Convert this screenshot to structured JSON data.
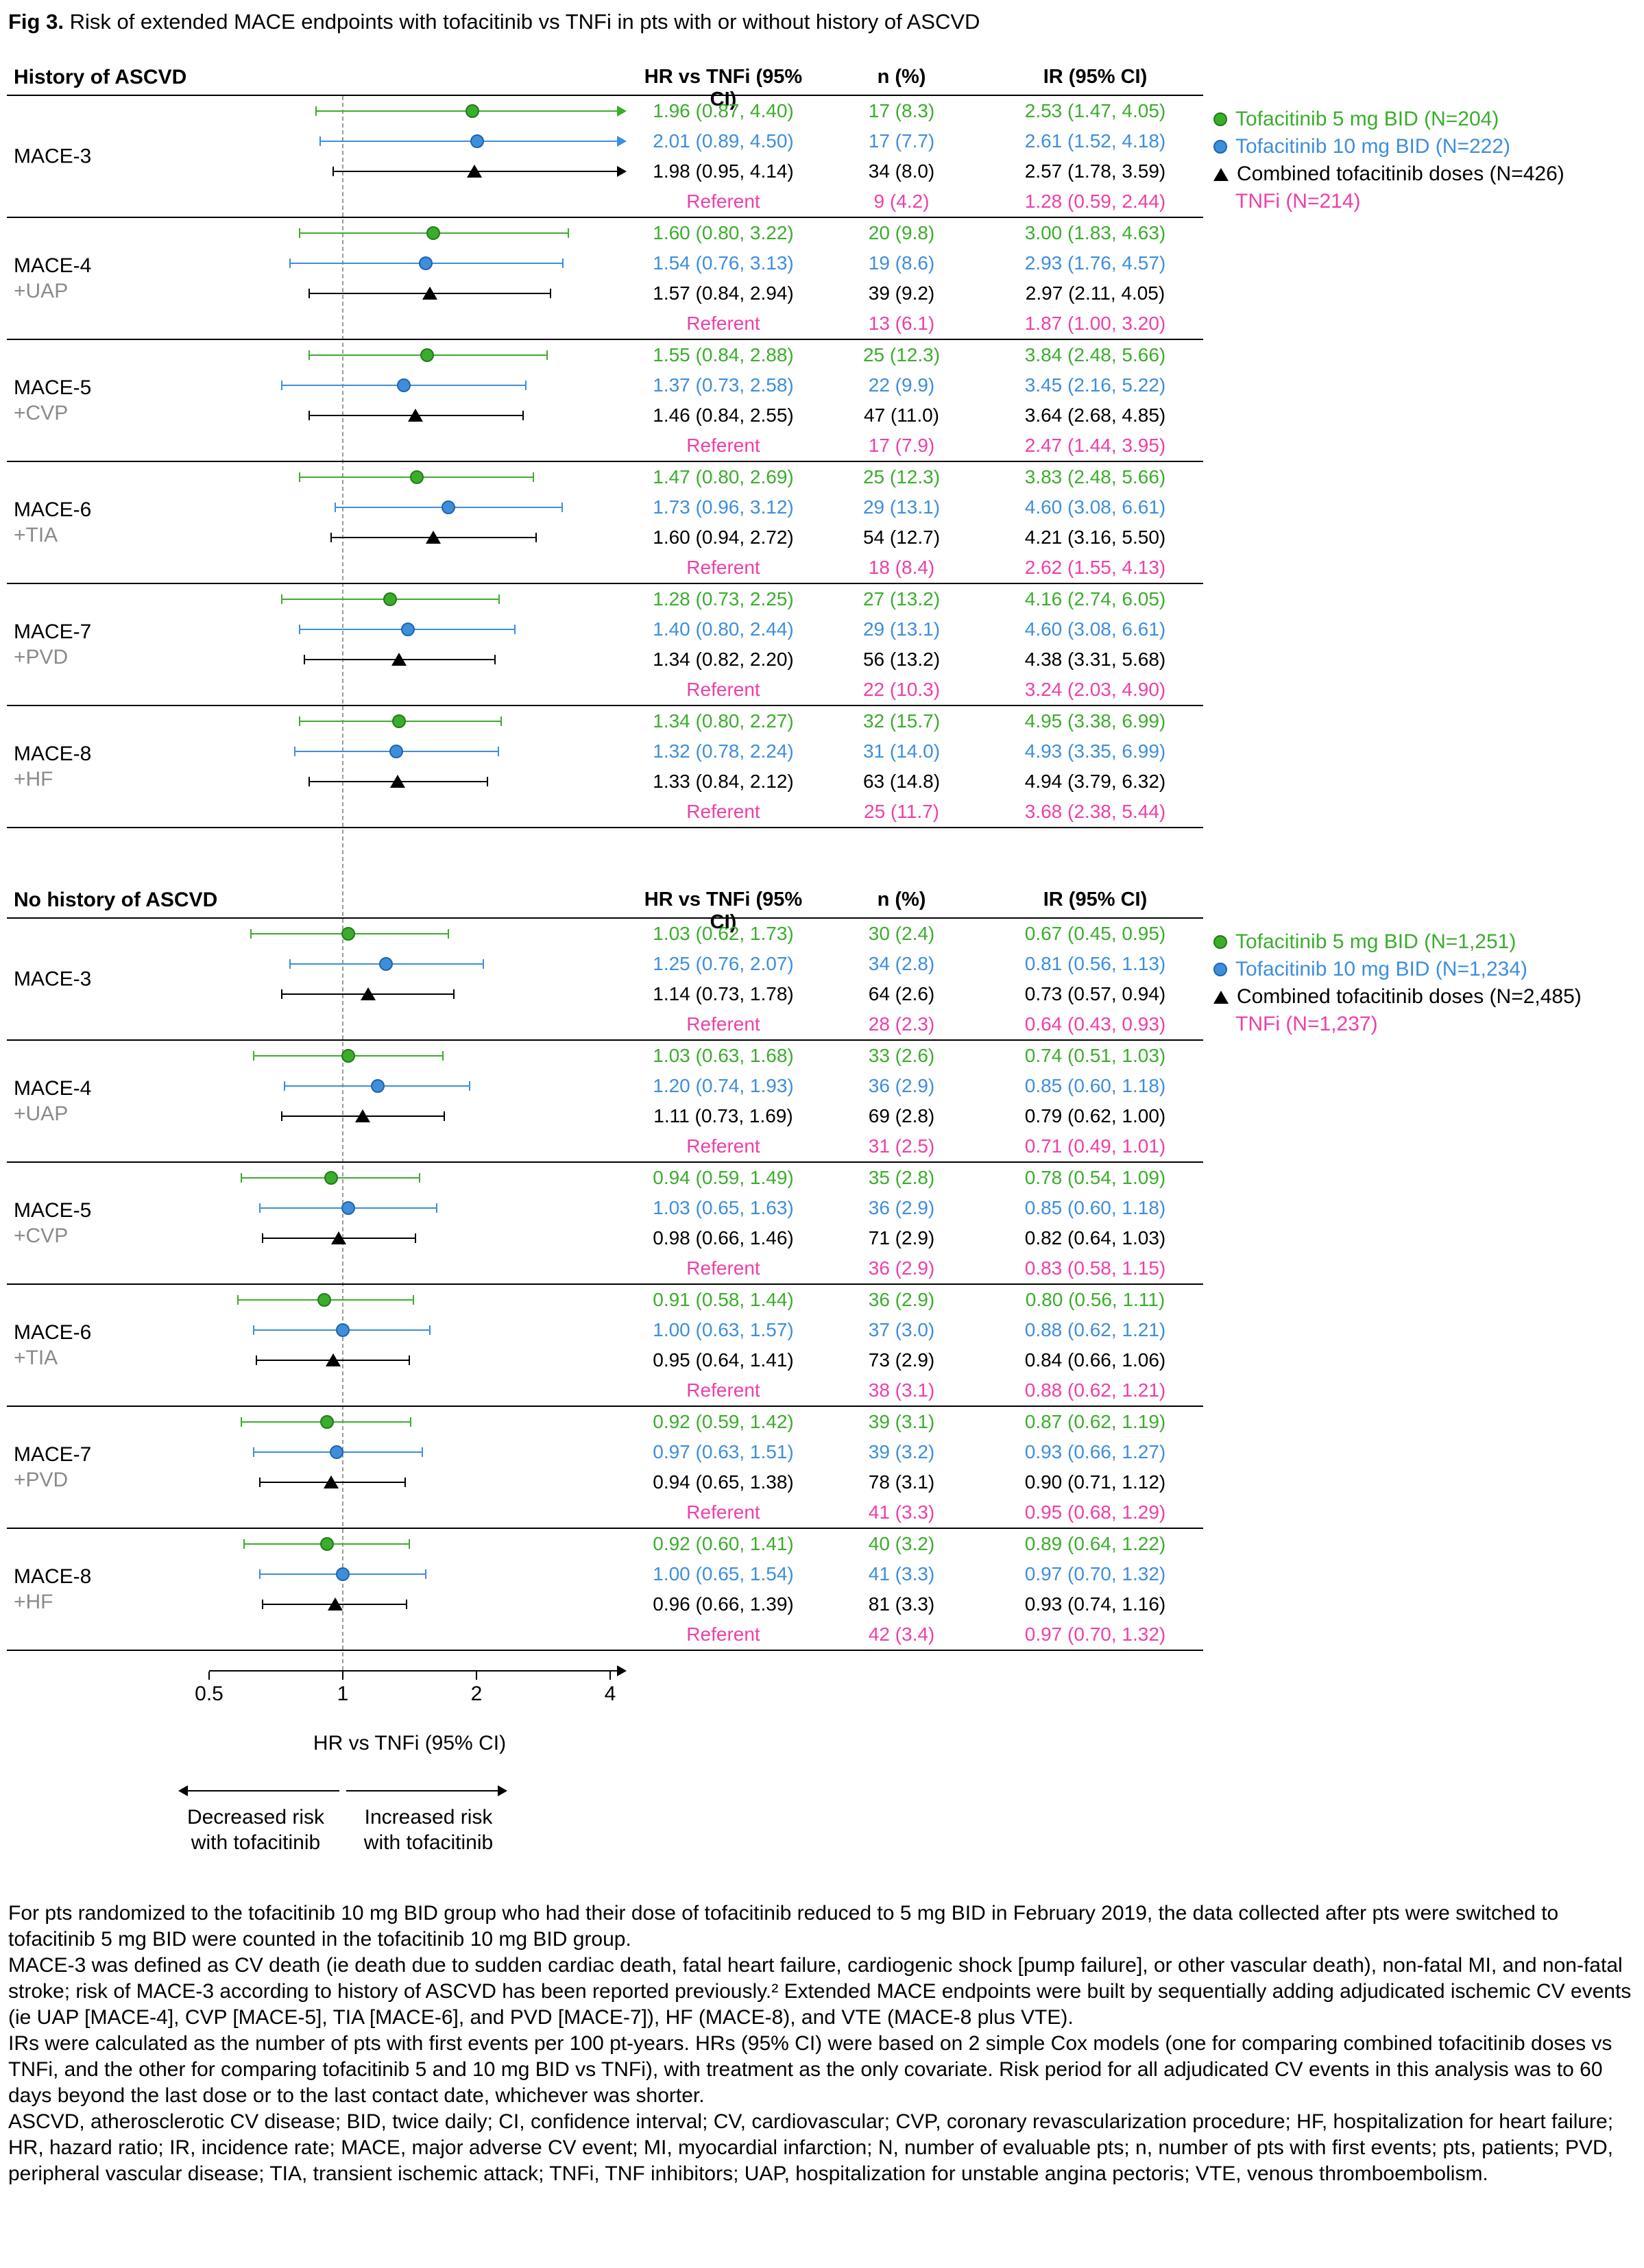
{
  "figure": {
    "label": "Fig 3.",
    "title": "Risk of extended MACE endpoints with tofacitinib vs TNFi in pts with or without history of ASCVD"
  },
  "columns": {
    "hr": "HR vs TNFi (95% CI)",
    "n": "n (%)",
    "ir": "IR (95% CI)"
  },
  "series_styles": {
    "tofa5": {
      "color": "#3BAD2C",
      "border": "#237A18",
      "marker": "circle"
    },
    "tofa10": {
      "color": "#3E8EDC",
      "border": "#1F64AD",
      "marker": "circle"
    },
    "combined": {
      "color": "#000000",
      "border": "#000000",
      "marker": "triangle"
    },
    "tnfi": {
      "color": "#EE3FA8",
      "border": "#EE3FA8",
      "marker": "none"
    }
  },
  "axis": {
    "scale": "log2",
    "min": 0.5,
    "max": 4,
    "ticks": [
      0.5,
      1,
      2,
      4
    ],
    "reference": 1,
    "label": "HR vs TNFi (95% CI)",
    "decreased_line1": "Decreased risk",
    "decreased_line2": "with tofacitinib",
    "increased_line1": "Increased risk",
    "increased_line2": "with tofacitinib"
  },
  "chart_data": [
    {
      "type": "forest",
      "title": "History of ASCVD",
      "x_scale": "log2",
      "x_ticks": [
        0.5,
        1,
        2,
        4
      ],
      "xlabel": "HR vs TNFi (95% CI)",
      "reference_line": 1,
      "legend": [
        {
          "series": "tofa5",
          "label": "Tofacitinib 5 mg BID (N=204)"
        },
        {
          "series": "tofa10",
          "label": "Tofacitinib 10 mg BID (N=222)"
        },
        {
          "series": "combined",
          "label": "Combined tofacitinib doses (N=426)"
        },
        {
          "series": "tnfi",
          "label": "TNFi (N=214)"
        }
      ],
      "groups": [
        {
          "label": "MACE-3",
          "sublabel": "",
          "rows": [
            {
              "series": "tofa5",
              "hr": 1.96,
              "lo": 0.87,
              "hi": 4.4,
              "hr_text": "1.96 (0.87, 4.40)",
              "n_text": "17 (8.3)",
              "ir_text": "2.53 (1.47, 4.05)"
            },
            {
              "series": "tofa10",
              "hr": 2.01,
              "lo": 0.89,
              "hi": 4.5,
              "hr_text": "2.01 (0.89, 4.50)",
              "n_text": "17 (7.7)",
              "ir_text": "2.61 (1.52, 4.18)"
            },
            {
              "series": "combined",
              "hr": 1.98,
              "lo": 0.95,
              "hi": 4.14,
              "hr_text": "1.98 (0.95, 4.14)",
              "n_text": "34 (8.0)",
              "ir_text": "2.57 (1.78, 3.59)"
            },
            {
              "series": "tnfi",
              "referent": true,
              "hr_text": "Referent",
              "n_text": "9 (4.2)",
              "ir_text": "1.28 (0.59, 2.44)"
            }
          ]
        },
        {
          "label": "MACE-4",
          "sublabel": "+UAP",
          "rows": [
            {
              "series": "tofa5",
              "hr": 1.6,
              "lo": 0.8,
              "hi": 3.22,
              "hr_text": "1.60 (0.80, 3.22)",
              "n_text": "20 (9.8)",
              "ir_text": "3.00 (1.83, 4.63)"
            },
            {
              "series": "tofa10",
              "hr": 1.54,
              "lo": 0.76,
              "hi": 3.13,
              "hr_text": "1.54 (0.76, 3.13)",
              "n_text": "19 (8.6)",
              "ir_text": "2.93 (1.76, 4.57)"
            },
            {
              "series": "combined",
              "hr": 1.57,
              "lo": 0.84,
              "hi": 2.94,
              "hr_text": "1.57 (0.84, 2.94)",
              "n_text": "39 (9.2)",
              "ir_text": "2.97 (2.11, 4.05)"
            },
            {
              "series": "tnfi",
              "referent": true,
              "hr_text": "Referent",
              "n_text": "13 (6.1)",
              "ir_text": "1.87 (1.00, 3.20)"
            }
          ]
        },
        {
          "label": "MACE-5",
          "sublabel": "+CVP",
          "rows": [
            {
              "series": "tofa5",
              "hr": 1.55,
              "lo": 0.84,
              "hi": 2.88,
              "hr_text": "1.55 (0.84, 2.88)",
              "n_text": "25 (12.3)",
              "ir_text": "3.84 (2.48, 5.66)"
            },
            {
              "series": "tofa10",
              "hr": 1.37,
              "lo": 0.73,
              "hi": 2.58,
              "hr_text": "1.37 (0.73, 2.58)",
              "n_text": "22 (9.9)",
              "ir_text": "3.45 (2.16, 5.22)"
            },
            {
              "series": "combined",
              "hr": 1.46,
              "lo": 0.84,
              "hi": 2.55,
              "hr_text": "1.46 (0.84, 2.55)",
              "n_text": "47 (11.0)",
              "ir_text": "3.64 (2.68, 4.85)"
            },
            {
              "series": "tnfi",
              "referent": true,
              "hr_text": "Referent",
              "n_text": "17 (7.9)",
              "ir_text": "2.47 (1.44, 3.95)"
            }
          ]
        },
        {
          "label": "MACE-6",
          "sublabel": "+TIA",
          "rows": [
            {
              "series": "tofa5",
              "hr": 1.47,
              "lo": 0.8,
              "hi": 2.69,
              "hr_text": "1.47 (0.80, 2.69)",
              "n_text": "25 (12.3)",
              "ir_text": "3.83 (2.48, 5.66)"
            },
            {
              "series": "tofa10",
              "hr": 1.73,
              "lo": 0.96,
              "hi": 3.12,
              "hr_text": "1.73 (0.96, 3.12)",
              "n_text": "29 (13.1)",
              "ir_text": "4.60 (3.08, 6.61)"
            },
            {
              "series": "combined",
              "hr": 1.6,
              "lo": 0.94,
              "hi": 2.72,
              "hr_text": "1.60 (0.94, 2.72)",
              "n_text": "54 (12.7)",
              "ir_text": "4.21 (3.16, 5.50)"
            },
            {
              "series": "tnfi",
              "referent": true,
              "hr_text": "Referent",
              "n_text": "18 (8.4)",
              "ir_text": "2.62 (1.55, 4.13)"
            }
          ]
        },
        {
          "label": "MACE-7",
          "sublabel": "+PVD",
          "rows": [
            {
              "series": "tofa5",
              "hr": 1.28,
              "lo": 0.73,
              "hi": 2.25,
              "hr_text": "1.28 (0.73, 2.25)",
              "n_text": "27 (13.2)",
              "ir_text": "4.16 (2.74, 6.05)"
            },
            {
              "series": "tofa10",
              "hr": 1.4,
              "lo": 0.8,
              "hi": 2.44,
              "hr_text": "1.40 (0.80, 2.44)",
              "n_text": "29 (13.1)",
              "ir_text": "4.60 (3.08, 6.61)"
            },
            {
              "series": "combined",
              "hr": 1.34,
              "lo": 0.82,
              "hi": 2.2,
              "hr_text": "1.34 (0.82, 2.20)",
              "n_text": "56 (13.2)",
              "ir_text": "4.38 (3.31, 5.68)"
            },
            {
              "series": "tnfi",
              "referent": true,
              "hr_text": "Referent",
              "n_text": "22 (10.3)",
              "ir_text": "3.24 (2.03, 4.90)"
            }
          ]
        },
        {
          "label": "MACE-8",
          "sublabel": "+HF",
          "rows": [
            {
              "series": "tofa5",
              "hr": 1.34,
              "lo": 0.8,
              "hi": 2.27,
              "hr_text": "1.34 (0.80, 2.27)",
              "n_text": "32 (15.7)",
              "ir_text": "4.95 (3.38, 6.99)"
            },
            {
              "series": "tofa10",
              "hr": 1.32,
              "lo": 0.78,
              "hi": 2.24,
              "hr_text": "1.32 (0.78, 2.24)",
              "n_text": "31 (14.0)",
              "ir_text": "4.93 (3.35, 6.99)"
            },
            {
              "series": "combined",
              "hr": 1.33,
              "lo": 0.84,
              "hi": 2.12,
              "hr_text": "1.33 (0.84, 2.12)",
              "n_text": "63 (14.8)",
              "ir_text": "4.94 (3.79, 6.32)"
            },
            {
              "series": "tnfi",
              "referent": true,
              "hr_text": "Referent",
              "n_text": "25 (11.7)",
              "ir_text": "3.68 (2.38, 5.44)"
            }
          ]
        }
      ]
    },
    {
      "type": "forest",
      "title": "No history of ASCVD",
      "x_scale": "log2",
      "x_ticks": [
        0.5,
        1,
        2,
        4
      ],
      "xlabel": "HR vs TNFi (95% CI)",
      "reference_line": 1,
      "legend": [
        {
          "series": "tofa5",
          "label": "Tofacitinib 5 mg BID (N=1,251)"
        },
        {
          "series": "tofa10",
          "label": "Tofacitinib 10 mg BID (N=1,234)"
        },
        {
          "series": "combined",
          "label": "Combined tofacitinib doses (N=2,485)"
        },
        {
          "series": "tnfi",
          "label": "TNFi (N=1,237)"
        }
      ],
      "groups": [
        {
          "label": "MACE-3",
          "sublabel": "",
          "rows": [
            {
              "series": "tofa5",
              "hr": 1.03,
              "lo": 0.62,
              "hi": 1.73,
              "hr_text": "1.03 (0.62, 1.73)",
              "n_text": "30 (2.4)",
              "ir_text": "0.67 (0.45, 0.95)"
            },
            {
              "series": "tofa10",
              "hr": 1.25,
              "lo": 0.76,
              "hi": 2.07,
              "hr_text": "1.25 (0.76, 2.07)",
              "n_text": "34 (2.8)",
              "ir_text": "0.81 (0.56, 1.13)"
            },
            {
              "series": "combined",
              "hr": 1.14,
              "lo": 0.73,
              "hi": 1.78,
              "hr_text": "1.14 (0.73, 1.78)",
              "n_text": "64 (2.6)",
              "ir_text": "0.73 (0.57, 0.94)"
            },
            {
              "series": "tnfi",
              "referent": true,
              "hr_text": "Referent",
              "n_text": "28 (2.3)",
              "ir_text": "0.64 (0.43, 0.93)"
            }
          ]
        },
        {
          "label": "MACE-4",
          "sublabel": "+UAP",
          "rows": [
            {
              "series": "tofa5",
              "hr": 1.03,
              "lo": 0.63,
              "hi": 1.68,
              "hr_text": "1.03 (0.63, 1.68)",
              "n_text": "33 (2.6)",
              "ir_text": "0.74 (0.51, 1.03)"
            },
            {
              "series": "tofa10",
              "hr": 1.2,
              "lo": 0.74,
              "hi": 1.93,
              "hr_text": "1.20 (0.74, 1.93)",
              "n_text": "36 (2.9)",
              "ir_text": "0.85 (0.60, 1.18)"
            },
            {
              "series": "combined",
              "hr": 1.11,
              "lo": 0.73,
              "hi": 1.69,
              "hr_text": "1.11 (0.73, 1.69)",
              "n_text": "69 (2.8)",
              "ir_text": "0.79 (0.62, 1.00)"
            },
            {
              "series": "tnfi",
              "referent": true,
              "hr_text": "Referent",
              "n_text": "31 (2.5)",
              "ir_text": "0.71 (0.49, 1.01)"
            }
          ]
        },
        {
          "label": "MACE-5",
          "sublabel": "+CVP",
          "rows": [
            {
              "series": "tofa5",
              "hr": 0.94,
              "lo": 0.59,
              "hi": 1.49,
              "hr_text": "0.94 (0.59, 1.49)",
              "n_text": "35 (2.8)",
              "ir_text": "0.78 (0.54, 1.09)"
            },
            {
              "series": "tofa10",
              "hr": 1.03,
              "lo": 0.65,
              "hi": 1.63,
              "hr_text": "1.03 (0.65, 1.63)",
              "n_text": "36 (2.9)",
              "ir_text": "0.85 (0.60, 1.18)"
            },
            {
              "series": "combined",
              "hr": 0.98,
              "lo": 0.66,
              "hi": 1.46,
              "hr_text": "0.98 (0.66, 1.46)",
              "n_text": "71 (2.9)",
              "ir_text": "0.82 (0.64, 1.03)"
            },
            {
              "series": "tnfi",
              "referent": true,
              "hr_text": "Referent",
              "n_text": "36 (2.9)",
              "ir_text": "0.83 (0.58, 1.15)"
            }
          ]
        },
        {
          "label": "MACE-6",
          "sublabel": "+TIA",
          "rows": [
            {
              "series": "tofa5",
              "hr": 0.91,
              "lo": 0.58,
              "hi": 1.44,
              "hr_text": "0.91 (0.58, 1.44)",
              "n_text": "36 (2.9)",
              "ir_text": "0.80 (0.56, 1.11)"
            },
            {
              "series": "tofa10",
              "hr": 1.0,
              "lo": 0.63,
              "hi": 1.57,
              "hr_text": "1.00 (0.63, 1.57)",
              "n_text": "37 (3.0)",
              "ir_text": "0.88 (0.62, 1.21)"
            },
            {
              "series": "combined",
              "hr": 0.95,
              "lo": 0.64,
              "hi": 1.41,
              "hr_text": "0.95 (0.64, 1.41)",
              "n_text": "73 (2.9)",
              "ir_text": "0.84 (0.66, 1.06)"
            },
            {
              "series": "tnfi",
              "referent": true,
              "hr_text": "Referent",
              "n_text": "38 (3.1)",
              "ir_text": "0.88 (0.62, 1.21)"
            }
          ]
        },
        {
          "label": "MACE-7",
          "sublabel": "+PVD",
          "rows": [
            {
              "series": "tofa5",
              "hr": 0.92,
              "lo": 0.59,
              "hi": 1.42,
              "hr_text": "0.92 (0.59, 1.42)",
              "n_text": "39 (3.1)",
              "ir_text": "0.87 (0.62, 1.19)"
            },
            {
              "series": "tofa10",
              "hr": 0.97,
              "lo": 0.63,
              "hi": 1.51,
              "hr_text": "0.97 (0.63, 1.51)",
              "n_text": "39 (3.2)",
              "ir_text": "0.93 (0.66, 1.27)"
            },
            {
              "series": "combined",
              "hr": 0.94,
              "lo": 0.65,
              "hi": 1.38,
              "hr_text": "0.94 (0.65, 1.38)",
              "n_text": "78 (3.1)",
              "ir_text": "0.90 (0.71, 1.12)"
            },
            {
              "series": "tnfi",
              "referent": true,
              "hr_text": "Referent",
              "n_text": "41 (3.3)",
              "ir_text": "0.95 (0.68, 1.29)"
            }
          ]
        },
        {
          "label": "MACE-8",
          "sublabel": "+HF",
          "rows": [
            {
              "series": "tofa5",
              "hr": 0.92,
              "lo": 0.6,
              "hi": 1.41,
              "hr_text": "0.92 (0.60, 1.41)",
              "n_text": "40 (3.2)",
              "ir_text": "0.89 (0.64, 1.22)"
            },
            {
              "series": "tofa10",
              "hr": 1.0,
              "lo": 0.65,
              "hi": 1.54,
              "hr_text": "1.00 (0.65, 1.54)",
              "n_text": "41 (3.3)",
              "ir_text": "0.97 (0.70, 1.32)"
            },
            {
              "series": "combined",
              "hr": 0.96,
              "lo": 0.66,
              "hi": 1.39,
              "hr_text": "0.96 (0.66, 1.39)",
              "n_text": "81 (3.3)",
              "ir_text": "0.93 (0.74, 1.16)"
            },
            {
              "series": "tnfi",
              "referent": true,
              "hr_text": "Referent",
              "n_text": "42 (3.4)",
              "ir_text": "0.97 (0.70, 1.32)"
            }
          ]
        }
      ]
    }
  ],
  "footnotes": [
    "For pts randomized to the tofacitinib 10 mg BID group who had their dose of tofacitinib reduced to 5 mg BID in February 2019, the data collected after pts were switched to tofacitinib 5 mg BID were counted in the tofacitinib 10 mg BID group.",
    "MACE-3 was defined as CV death (ie death due to sudden cardiac death, fatal heart failure, cardiogenic shock [pump failure], or other vascular death), non-fatal MI, and non-fatal stroke; risk of MACE-3 according to history of ASCVD has been reported previously.² Extended MACE endpoints were built by sequentially adding adjudicated ischemic CV events (ie UAP [MACE-4], CVP [MACE-5], TIA [MACE-6], and PVD [MACE-7]), HF (MACE-8), and VTE (MACE-8 plus VTE).",
    "IRs were calculated as the number of pts with first events per 100 pt-years. HRs (95% CI) were based on 2 simple Cox models (one for comparing combined tofacitinib doses vs TNFi, and the other for comparing tofacitinib 5 and 10 mg BID vs TNFi), with treatment as the only covariate. Risk period for all adjudicated CV events in this analysis was to 60 days beyond the last dose or to the last contact date, whichever was shorter.",
    "ASCVD, atherosclerotic CV disease; BID, twice daily; CI, confidence interval; CV, cardiovascular; CVP, coronary revascularization procedure; HF, hospitalization for heart failure; HR, hazard ratio; IR, incidence rate; MACE, major adverse CV event; MI, myocardial infarction; N, number of evaluable pts; n, number of pts with first events; pts, patients; PVD, peripheral vascular disease; TIA, transient ischemic attack; TNFi, TNF inhibitors; UAP, hospitalization for unstable angina pectoris; VTE, venous thromboembolism."
  ]
}
